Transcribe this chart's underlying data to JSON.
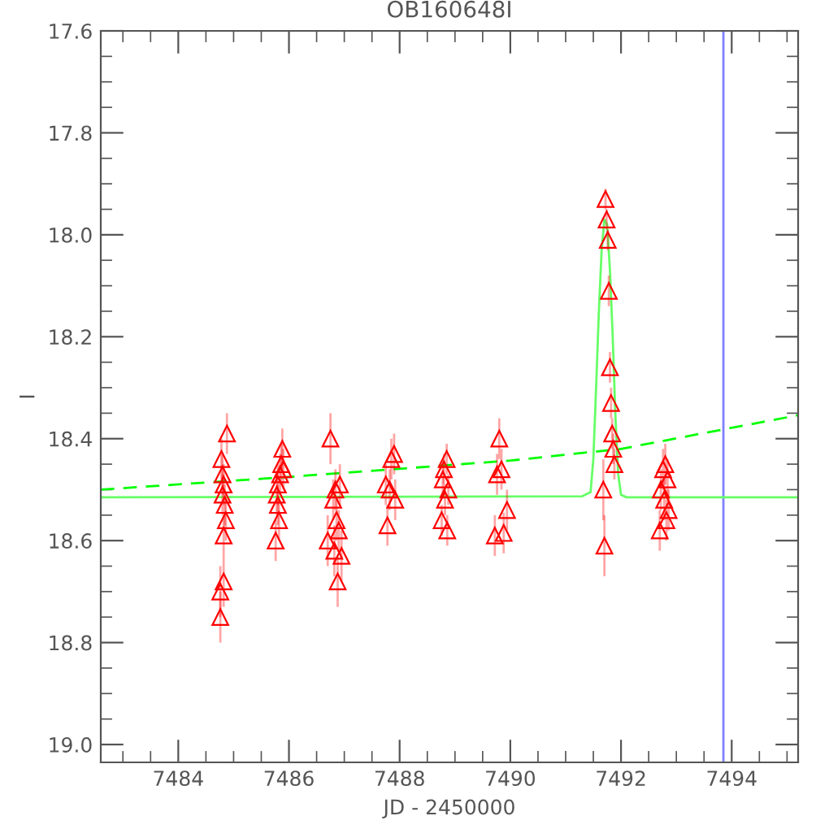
{
  "chart_data": {
    "type": "scatter",
    "title": "OB160648I",
    "xlabel": "JD - 2450000",
    "ylabel": "I",
    "xlim": [
      7482.6,
      7495.2
    ],
    "ylim": [
      19.035,
      17.6
    ],
    "xticks": [
      7484,
      7486,
      7488,
      7490,
      7492,
      7494
    ],
    "yticks": [
      17.6,
      17.8,
      {
        "value": 18.0,
        "label": "18.0"
      },
      18.2,
      18.4,
      18.6,
      18.8,
      {
        "value": 19.0,
        "label": "19.0"
      }
    ],
    "grid": false,
    "legend": false,
    "series": [
      {
        "type": "line",
        "color": "#00ff00",
        "line_style": "dashed",
        "marker": "none",
        "x": [
          7482.6,
          7486.0,
          7490.0,
          7492.0,
          7495.2
        ],
        "values": [
          18.5,
          18.475,
          18.443,
          18.42,
          18.354
        ]
      },
      {
        "type": "line",
        "color": "#66ff66",
        "line_style": "solid",
        "marker": "none",
        "x": [
          7482.6,
          7491.3,
          7491.45,
          7491.5,
          7491.55,
          7491.6,
          7491.65,
          7491.7,
          7491.75,
          7491.8,
          7491.85,
          7491.9,
          7491.95,
          7492.0,
          7492.1,
          7495.2
        ],
        "values": [
          18.515,
          18.513,
          18.505,
          18.44,
          18.3,
          18.15,
          18.03,
          17.97,
          17.98,
          18.07,
          18.2,
          18.36,
          18.47,
          18.51,
          18.515,
          18.515
        ]
      },
      {
        "color": "#ff0000",
        "marker": "triangle",
        "x": [
          7484.88,
          7484.78,
          7484.8,
          7484.82,
          7484.8,
          7484.84,
          7484.86,
          7484.82,
          7484.82,
          7484.76,
          7484.76,
          7485.88,
          7485.86,
          7485.9,
          7485.84,
          7485.8,
          7485.78,
          7485.8,
          7485.82,
          7485.76,
          7486.75,
          7486.92,
          7486.84,
          7486.8,
          7486.86,
          7486.9,
          7486.7,
          7486.82,
          7486.95,
          7486.88,
          7487.9,
          7487.85,
          7487.75,
          7487.82,
          7487.92,
          7487.78,
          7488.85,
          7488.8,
          7488.78,
          7488.88,
          7488.82,
          7488.76,
          7488.86,
          7489.8,
          7489.84,
          7489.76,
          7489.94,
          7489.72,
          7489.88,
          7491.72,
          7491.74,
          7491.76,
          7491.78,
          7491.8,
          7491.82,
          7491.84,
          7491.86,
          7491.88,
          7491.68,
          7491.7,
          7492.8,
          7492.76,
          7492.84,
          7492.72,
          7492.78,
          7492.86,
          7492.82,
          7492.7
        ],
        "values": [
          18.39,
          18.44,
          18.47,
          18.49,
          18.51,
          18.53,
          18.56,
          18.59,
          18.68,
          18.7,
          18.75,
          18.42,
          18.45,
          18.46,
          18.47,
          18.49,
          18.51,
          18.53,
          18.56,
          18.6,
          18.4,
          18.49,
          18.5,
          18.52,
          18.56,
          18.58,
          18.6,
          18.62,
          18.63,
          18.68,
          18.43,
          18.44,
          18.49,
          18.5,
          18.52,
          18.57,
          18.44,
          18.46,
          18.48,
          18.5,
          18.52,
          18.56,
          18.58,
          18.4,
          18.46,
          18.47,
          18.54,
          18.59,
          18.585,
          17.93,
          17.97,
          18.01,
          18.11,
          18.26,
          18.33,
          18.39,
          18.42,
          18.45,
          18.5,
          18.61,
          18.45,
          18.46,
          18.48,
          18.5,
          18.52,
          18.54,
          18.56,
          18.58
        ],
        "errors": [
          0.04,
          0.04,
          0.04,
          0.04,
          0.04,
          0.04,
          0.04,
          0.04,
          0.05,
          0.05,
          0.05,
          0.04,
          0.04,
          0.04,
          0.04,
          0.04,
          0.04,
          0.04,
          0.04,
          0.04,
          0.05,
          0.04,
          0.04,
          0.04,
          0.04,
          0.04,
          0.05,
          0.05,
          0.05,
          0.05,
          0.04,
          0.04,
          0.04,
          0.04,
          0.04,
          0.04,
          0.03,
          0.03,
          0.03,
          0.03,
          0.03,
          0.03,
          0.03,
          0.04,
          0.04,
          0.04,
          0.04,
          0.04,
          0.04,
          0.02,
          0.02,
          0.02,
          0.03,
          0.03,
          0.03,
          0.03,
          0.03,
          0.03,
          0.06,
          0.06,
          0.04,
          0.04,
          0.04,
          0.04,
          0.04,
          0.04,
          0.04,
          0.04
        ]
      }
    ],
    "ref_lines": [
      {
        "axis": "x",
        "value": 7493.85,
        "color": "#8080ff"
      }
    ]
  }
}
